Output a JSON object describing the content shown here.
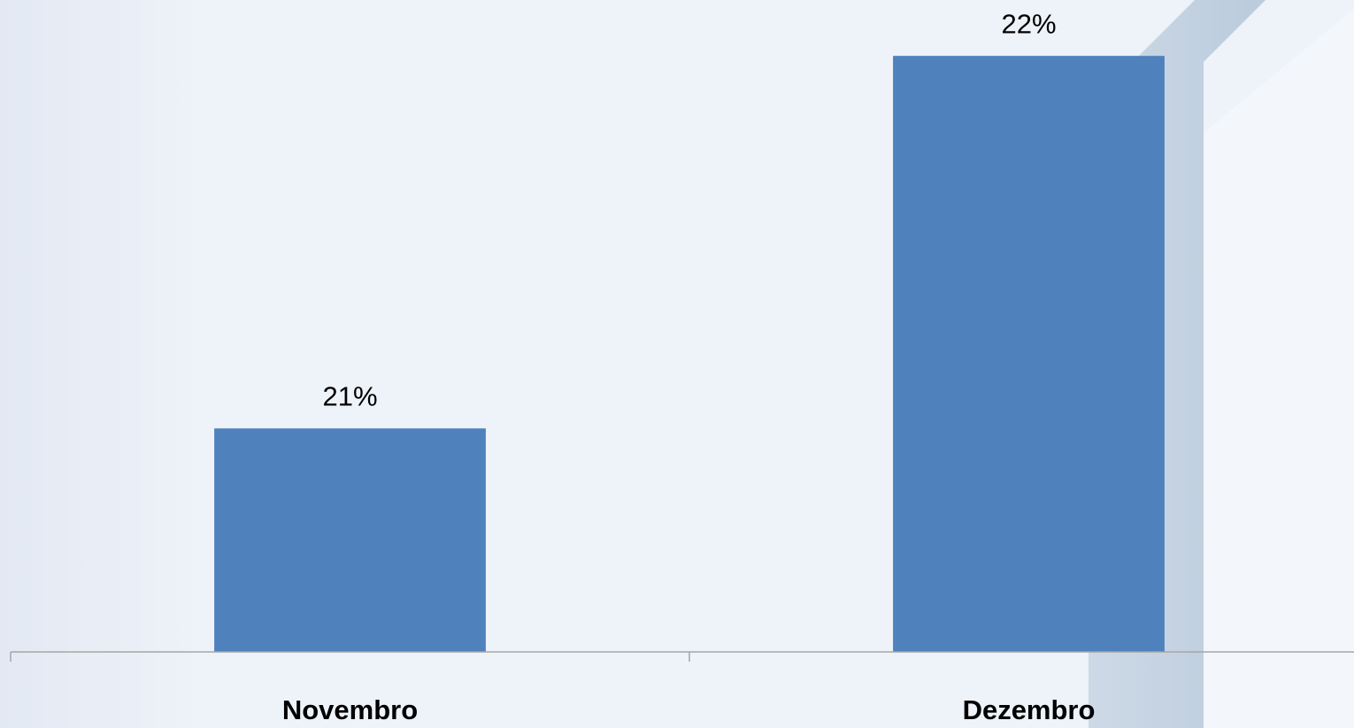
{
  "chart_data": {
    "type": "bar",
    "categories": [
      "Novembro",
      "Dezembro"
    ],
    "values": [
      21,
      22
    ],
    "value_labels": [
      "21%",
      "22%"
    ],
    "color": "#4f81bd",
    "ylim": [
      20.4,
      22.15
    ]
  }
}
